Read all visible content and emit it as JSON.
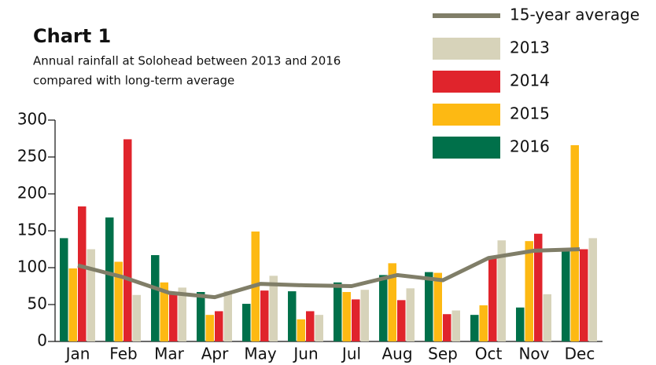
{
  "chart_data": {
    "type": "bar",
    "title": "Chart 1",
    "subtitle": [
      "Annual rainfall at Solohead between 2013 and 2016",
      "compared with long-term average"
    ],
    "categories": [
      "Jan",
      "Feb",
      "Mar",
      "Apr",
      "May",
      "Jun",
      "Jul",
      "Aug",
      "Sep",
      "Oct",
      "Nov",
      "Dec"
    ],
    "series": [
      {
        "name": "15-year average",
        "type": "line",
        "color": "#807e68",
        "values": [
          103,
          87,
          66,
          60,
          78,
          76,
          75,
          90,
          83,
          113,
          123,
          125
        ]
      },
      {
        "name": "2013",
        "color": "#d7d3ba",
        "values": [
          125,
          63,
          73,
          68,
          89,
          36,
          70,
          72,
          42,
          137,
          64,
          140
        ]
      },
      {
        "name": "2014",
        "color": "#e0242c",
        "values": [
          183,
          274,
          65,
          41,
          69,
          41,
          57,
          56,
          37,
          113,
          146,
          125
        ]
      },
      {
        "name": "2015",
        "color": "#fdb913",
        "values": [
          99,
          108,
          80,
          36,
          149,
          30,
          67,
          106,
          93,
          49,
          136,
          266
        ]
      },
      {
        "name": "2016",
        "color": "#00704a",
        "values": [
          140,
          168,
          117,
          67,
          51,
          68,
          80,
          90,
          94,
          36,
          46,
          125
        ]
      }
    ],
    "ylim": [
      0,
      300
    ],
    "yticks": [
      0,
      50,
      100,
      150,
      200,
      250,
      300
    ],
    "grid": false,
    "legend": "top-right"
  }
}
